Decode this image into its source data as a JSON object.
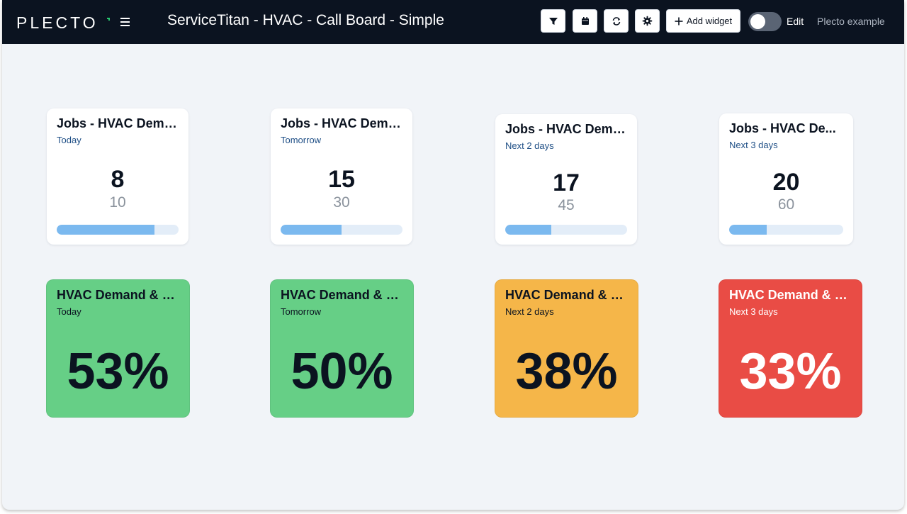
{
  "app": {
    "logo": "PLECTO",
    "dashboard_title": "ServiceTitan - HVAC - Call Board - Simple",
    "add_widget_label": "Add widget",
    "edit_label": "Edit",
    "account_label": "Plecto example",
    "edit_mode_on": false
  },
  "toolbar_icons": [
    "filter-icon",
    "calendar-icon",
    "refresh-icon",
    "settings-icon"
  ],
  "colors": {
    "topbar": "#0b1320",
    "background": "#f1f4f8",
    "progress": "#7bb9ef",
    "good": "#66cf86",
    "warning": "#f5b649",
    "bad": "#e94c45",
    "logo_accent": "#28c76f"
  },
  "number_widgets": [
    {
      "title": "Jobs - HVAC Dema...",
      "period": "Today",
      "value": "8",
      "target": "10",
      "progress": 0.8
    },
    {
      "title": "Jobs - HVAC Dema...",
      "period": "Tomorrow",
      "value": "15",
      "target": "30",
      "progress": 0.5
    },
    {
      "title": "Jobs - HVAC Dema...",
      "period": "Next 2 days",
      "value": "17",
      "target": "45",
      "progress": 0.38
    },
    {
      "title": "Jobs - HVAC De...",
      "period": "Next 3 days",
      "value": "20",
      "target": "60",
      "progress": 0.33
    }
  ],
  "percent_widgets": [
    {
      "title": "HVAC Demand & M...",
      "period": "Today",
      "value": "53%",
      "status": "good"
    },
    {
      "title": "HVAC Demand & M...",
      "period": "Tomorrow",
      "value": "50%",
      "status": "good"
    },
    {
      "title": "HVAC Demand & M...",
      "period": "Next 2 days",
      "value": "38%",
      "status": "warning"
    },
    {
      "title": "HVAC Demand & M...",
      "period": "Next 3 days",
      "value": "33%",
      "status": "bad"
    }
  ]
}
